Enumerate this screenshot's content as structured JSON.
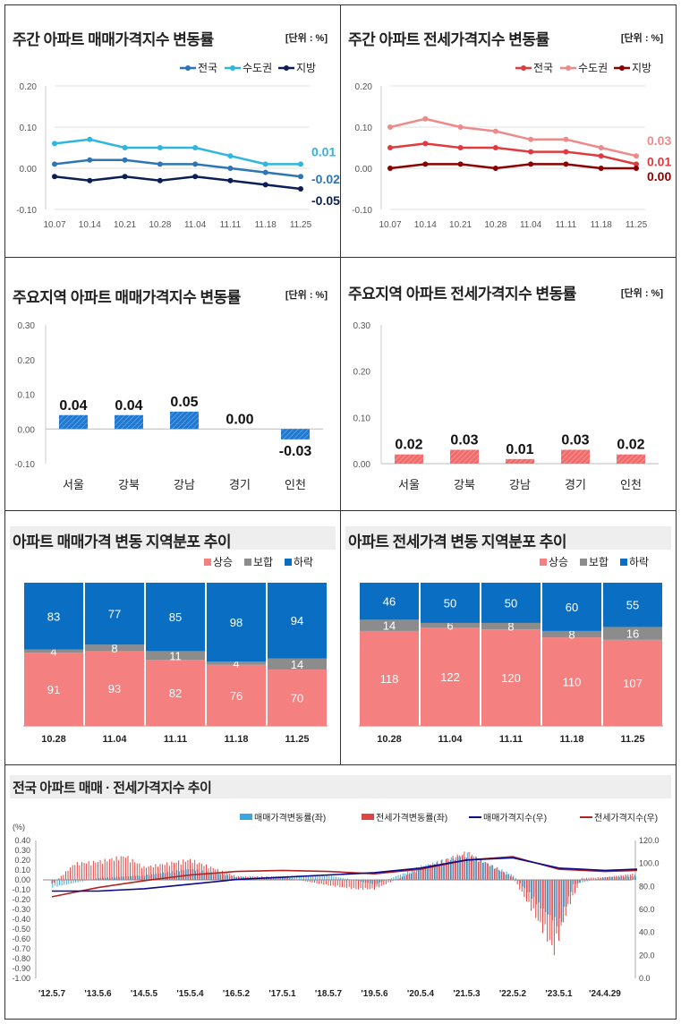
{
  "colors": {
    "sale_nation": "#2e75b6",
    "sale_capital": "#2eb5e0",
    "sale_local": "#0b1f55",
    "jeonse_nation": "#e03a3e",
    "jeonse_capital": "#ee8a8a",
    "jeonse_local": "#8b0000",
    "rise": "#f48080",
    "flat": "#8c8c8c",
    "fall": "#0a6fc2"
  },
  "panels": {
    "p1": {
      "title": "주간 아파트 매매가격지수 변동률",
      "unit": "[단위 : %]"
    },
    "p2": {
      "title": "주간 아파트 전세가격지수 변동률",
      "unit": "[단위 : %]"
    },
    "p3": {
      "title": "주요지역 아파트 매매가격지수 변동률",
      "unit": "[단위 : %]"
    },
    "p4": {
      "title": "주요지역 아파트 전세가격지수 변동률",
      "unit": "[단위 : %]"
    },
    "p5": {
      "title": "아파트 매매가격 변동 지역분포 추이"
    },
    "p6": {
      "title": "아파트 전세가격 변동 지역분포 추이"
    },
    "p7": {
      "title": "전국 아파트 매매 · 전세가격지수 추이"
    }
  },
  "chart_data": [
    {
      "id": "weekly_sale",
      "type": "line",
      "title": "주간 아파트 매매가격지수 변동률",
      "x": [
        "10.07",
        "10.14",
        "10.21",
        "10.28",
        "11.04",
        "11.11",
        "11.18",
        "11.25"
      ],
      "ylim": [
        -0.1,
        0.2
      ],
      "yticks": [
        "0.20",
        "0.10",
        "0.00",
        "-0.10"
      ],
      "series": [
        {
          "name": "전국",
          "values": [
            0.01,
            0.02,
            0.02,
            0.01,
            0.01,
            0.0,
            -0.01,
            -0.02
          ],
          "end_label": "-0.02"
        },
        {
          "name": "수도권",
          "values": [
            0.06,
            0.07,
            0.05,
            0.05,
            0.05,
            0.03,
            0.01,
            0.01
          ],
          "end_label": "0.01"
        },
        {
          "name": "지방",
          "values": [
            -0.02,
            -0.03,
            -0.02,
            -0.03,
            -0.02,
            -0.03,
            -0.04,
            -0.05
          ],
          "end_label": "-0.05"
        }
      ]
    },
    {
      "id": "weekly_jeonse",
      "type": "line",
      "title": "주간 아파트 전세가격지수 변동률",
      "x": [
        "10.07",
        "10.14",
        "10.21",
        "10.28",
        "11.04",
        "11.11",
        "11.18",
        "11.25"
      ],
      "ylim": [
        -0.1,
        0.2
      ],
      "yticks": [
        "0.20",
        "0.10",
        "0.00",
        "-0.10"
      ],
      "series": [
        {
          "name": "전국",
          "values": [
            0.05,
            0.06,
            0.05,
            0.05,
            0.04,
            0.04,
            0.03,
            0.01
          ],
          "end_label": "0.01"
        },
        {
          "name": "수도권",
          "values": [
            0.1,
            0.12,
            0.1,
            0.09,
            0.07,
            0.07,
            0.05,
            0.03
          ],
          "end_label": "0.03"
        },
        {
          "name": "지방",
          "values": [
            0.0,
            0.01,
            0.01,
            0.0,
            0.01,
            0.01,
            0.0,
            0.0
          ],
          "end_label": "0.00"
        }
      ]
    },
    {
      "id": "region_sale",
      "type": "bar",
      "title": "주요지역 아파트 매매가격지수 변동률",
      "categories": [
        "서울",
        "강북",
        "강남",
        "경기",
        "인천"
      ],
      "values": [
        0.04,
        0.04,
        0.05,
        0.0,
        -0.03
      ],
      "labels": [
        "0.04",
        "0.04",
        "0.05",
        "0.00",
        "-0.03"
      ],
      "ylim": [
        -0.1,
        0.3
      ],
      "yticks": [
        "0.30",
        "0.20",
        "0.10",
        "0.00",
        "-0.10"
      ]
    },
    {
      "id": "region_jeonse",
      "type": "bar",
      "title": "주요지역 아파트 전세가격지수 변동률",
      "categories": [
        "서울",
        "강북",
        "강남",
        "경기",
        "인천"
      ],
      "values": [
        0.02,
        0.03,
        0.01,
        0.03,
        0.02
      ],
      "labels": [
        "0.02",
        "0.03",
        "0.01",
        "0.03",
        "0.02"
      ],
      "ylim": [
        0.0,
        0.3
      ],
      "yticks": [
        "0.30",
        "0.20",
        "0.10",
        "0.00"
      ]
    },
    {
      "id": "dist_sale",
      "type": "bar",
      "stacked": true,
      "title": "아파트 매매가격 변동 지역분포 추이",
      "categories": [
        "10.28",
        "11.04",
        "11.11",
        "11.18",
        "11.25"
      ],
      "series": [
        {
          "name": "상승",
          "values": [
            91,
            93,
            82,
            76,
            70
          ]
        },
        {
          "name": "보합",
          "values": [
            4,
            8,
            11,
            4,
            14
          ]
        },
        {
          "name": "하락",
          "values": [
            83,
            77,
            85,
            98,
            94
          ]
        }
      ]
    },
    {
      "id": "dist_jeonse",
      "type": "bar",
      "stacked": true,
      "title": "아파트 전세가격 변동 지역분포 추이",
      "categories": [
        "10.28",
        "11.04",
        "11.11",
        "11.18",
        "11.25"
      ],
      "series": [
        {
          "name": "상승",
          "values": [
            118,
            122,
            120,
            110,
            107
          ]
        },
        {
          "name": "보합",
          "values": [
            14,
            6,
            8,
            8,
            16
          ]
        },
        {
          "name": "하락",
          "values": [
            46,
            50,
            50,
            60,
            55
          ]
        }
      ]
    },
    {
      "id": "long_trend",
      "type": "line",
      "title": "전국 아파트 매매 · 전세가격지수 추이",
      "ylabel_left": "(%)",
      "left_yticks": [
        "0.40",
        "0.30",
        "0.20",
        "0.10",
        "0.00",
        "-0.10",
        "-0.20",
        "-0.30",
        "-0.40",
        "-0.50",
        "-0.60",
        "-0.70",
        "-0.80",
        "-0.90",
        "-1.00"
      ],
      "right_yticks": [
        "120.0",
        "100.0",
        "80.0",
        "60.0",
        "40.0",
        "20.0",
        "0.0"
      ],
      "ylim_left": [
        -1.0,
        0.4
      ],
      "ylim_right": [
        0,
        120
      ],
      "x_ticks": [
        "'12.5.7",
        "'13.5.6",
        "'14.5.5",
        "'15.5.4",
        "'16.5.2",
        "'17.5.1",
        "'18.5.7",
        "'19.5.6",
        "'20.5.4",
        "'21.5.3",
        "'22.5.2",
        "'23.5.1",
        "'24.4.29"
      ],
      "legend": [
        "매매가격변동률(좌)",
        "전세가격변동률(좌)",
        "매매가격지수(우)",
        "전세가격지수(우)"
      ],
      "sale_index": [
        [
          0,
          76
        ],
        [
          1,
          76
        ],
        [
          2,
          78
        ],
        [
          3,
          82
        ],
        [
          4,
          86
        ],
        [
          5,
          88
        ],
        [
          6,
          90
        ],
        [
          7,
          92
        ],
        [
          8,
          96
        ],
        [
          9,
          103
        ],
        [
          10,
          105
        ],
        [
          11,
          96
        ],
        [
          12,
          94
        ],
        [
          12.7,
          95
        ]
      ],
      "jeonse_index": [
        [
          0,
          71
        ],
        [
          1,
          79
        ],
        [
          2,
          85
        ],
        [
          3,
          90
        ],
        [
          4,
          93
        ],
        [
          5,
          94
        ],
        [
          6,
          93
        ],
        [
          7,
          91
        ],
        [
          8,
          95
        ],
        [
          9,
          103
        ],
        [
          10,
          106
        ],
        [
          11,
          95
        ],
        [
          12,
          93
        ],
        [
          12.7,
          94
        ]
      ],
      "sale_rate": [
        [
          0,
          -0.08
        ],
        [
          1,
          0.02
        ],
        [
          2,
          0.05
        ],
        [
          3,
          0.12
        ],
        [
          4,
          0.03
        ],
        [
          5,
          0.04
        ],
        [
          6,
          0.05
        ],
        [
          7,
          -0.05
        ],
        [
          8,
          0.15
        ],
        [
          9,
          0.28
        ],
        [
          10,
          0.05
        ],
        [
          10.5,
          -0.25
        ],
        [
          11,
          -0.5
        ],
        [
          11.3,
          -0.05
        ],
        [
          12,
          0.03
        ],
        [
          12.7,
          0.04
        ]
      ],
      "jeonse_rate": [
        [
          0,
          -0.05
        ],
        [
          0.5,
          0.18
        ],
        [
          1,
          0.2
        ],
        [
          1.6,
          0.26
        ],
        [
          2,
          0.14
        ],
        [
          3,
          0.22
        ],
        [
          4,
          0.04
        ],
        [
          5,
          0.03
        ],
        [
          6,
          -0.06
        ],
        [
          6.6,
          -0.1
        ],
        [
          7,
          -0.1
        ],
        [
          8,
          0.12
        ],
        [
          9,
          0.3
        ],
        [
          10,
          0.03
        ],
        [
          10.5,
          -0.4
        ],
        [
          10.9,
          -0.78
        ],
        [
          11.2,
          -0.3
        ],
        [
          11.5,
          0.02
        ],
        [
          12,
          0.03
        ],
        [
          12.7,
          0.07
        ]
      ]
    }
  ]
}
